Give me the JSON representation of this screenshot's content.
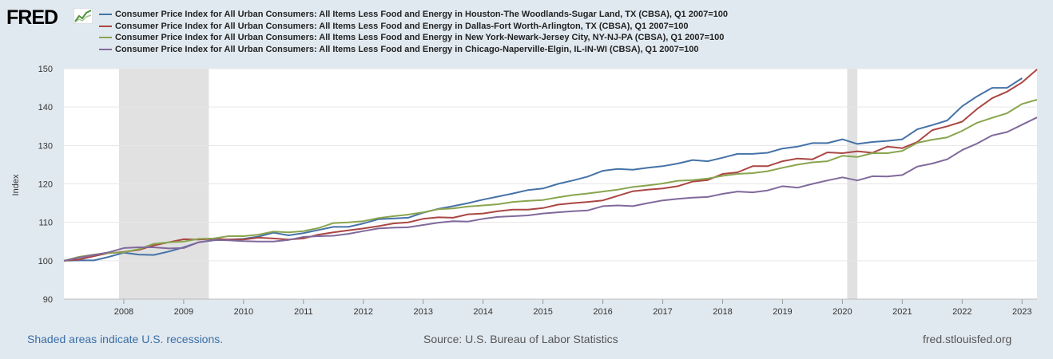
{
  "branding": {
    "logo_text": "FRED",
    "logo_colors": {
      "graph": "#4f8f3c",
      "text": "#000000"
    }
  },
  "footer": {
    "recession_note": "Shaded areas indicate U.S. recessions.",
    "source": "Source: U.S. Bureau of Labor Statistics",
    "site": "fred.stlouisfed.org"
  },
  "colors": {
    "background": "#e1e9f0",
    "plot_background": "#ffffff",
    "grid": "#e6e6e6",
    "recession": "#e1e1e1"
  },
  "chart_data": {
    "type": "line",
    "title": "",
    "xlabel": "",
    "ylabel": "Index",
    "ylim": [
      90,
      150
    ],
    "yticks": [
      90,
      100,
      110,
      120,
      130,
      140,
      150
    ],
    "xlim": [
      2007.0,
      2023.25
    ],
    "xticks": [
      "2008",
      "2009",
      "2010",
      "2011",
      "2012",
      "2013",
      "2014",
      "2015",
      "2016",
      "2017",
      "2018",
      "2019",
      "2020",
      "2021",
      "2022",
      "2023"
    ],
    "grid": true,
    "legend_position": "top",
    "recessions": [
      [
        2007.92,
        2009.42
      ],
      [
        2020.08,
        2020.25
      ]
    ],
    "x": [
      2007.0,
      2007.25,
      2007.5,
      2007.75,
      2008.0,
      2008.25,
      2008.5,
      2008.75,
      2009.0,
      2009.25,
      2009.5,
      2009.75,
      2010.0,
      2010.25,
      2010.5,
      2010.75,
      2011.0,
      2011.25,
      2011.5,
      2011.75,
      2012.0,
      2012.25,
      2012.5,
      2012.75,
      2013.0,
      2013.25,
      2013.5,
      2013.75,
      2014.0,
      2014.25,
      2014.5,
      2014.75,
      2015.0,
      2015.25,
      2015.5,
      2015.75,
      2016.0,
      2016.25,
      2016.5,
      2016.75,
      2017.0,
      2017.25,
      2017.5,
      2017.75,
      2018.0,
      2018.25,
      2018.5,
      2018.75,
      2019.0,
      2019.25,
      2019.5,
      2019.75,
      2020.0,
      2020.25,
      2020.5,
      2020.75,
      2021.0,
      2021.25,
      2021.5,
      2021.75,
      2022.0,
      2022.25,
      2022.5,
      2022.75,
      2023.0,
      2023.25
    ],
    "series": [
      {
        "name": "Consumer Price Index for All Urban Consumers: All Items Less Food and Energy in Houston-The Woodlands-Sugar Land, TX (CBSA), Q1 2007=100",
        "color": "#4572a7",
        "values": [
          100,
          100.1,
          100.1,
          101.0,
          102.1,
          101.6,
          101.5,
          102.4,
          103.5,
          104.8,
          105.3,
          105.5,
          105.7,
          106.3,
          107.3,
          106.6,
          107.2,
          108.0,
          108.8,
          108.8,
          109.7,
          110.8,
          111.0,
          111.2,
          112.5,
          113.5,
          114.2,
          115.0,
          115.9,
          116.7,
          117.5,
          118.4,
          118.8,
          120.0,
          120.9,
          121.9,
          123.4,
          123.9,
          123.7,
          124.2,
          124.6,
          125.3,
          126.2,
          125.9,
          126.8,
          127.8,
          127.8,
          128.1,
          129.2,
          129.7,
          130.6,
          130.6,
          131.6,
          130.4,
          130.9,
          131.2,
          131.6,
          134.2,
          135.3,
          136.5,
          140.2,
          142.8,
          145.0,
          145.0,
          147.5,
          null
        ]
      },
      {
        "name": "Consumer Price Index for All Urban Consumers: All Items Less Food and Energy in Dallas-Fort Worth-Arlington, TX (CBSA), Q1 2007=100",
        "color": "#aa4643",
        "values": [
          100,
          100.3,
          101.2,
          102.0,
          102.3,
          102.8,
          104.0,
          104.8,
          105.6,
          105.5,
          105.7,
          105.5,
          105.5,
          106.0,
          105.8,
          105.5,
          105.8,
          106.8,
          107.4,
          107.9,
          108.4,
          109.0,
          109.7,
          110.0,
          110.9,
          111.3,
          111.2,
          112.1,
          112.3,
          112.9,
          113.3,
          113.3,
          113.7,
          114.6,
          115.0,
          115.3,
          115.7,
          116.9,
          118.1,
          118.5,
          118.8,
          119.4,
          120.6,
          121.0,
          122.6,
          123.0,
          124.6,
          124.6,
          125.9,
          126.6,
          126.4,
          128.2,
          128.0,
          128.5,
          128.1,
          129.7,
          129.3,
          130.9,
          134.0,
          135.0,
          136.2,
          139.5,
          142.3,
          144.0,
          146.4,
          149.8
        ]
      },
      {
        "name": "Consumer Price Index for All Urban Consumers: All Items Less Food and Energy in New York-Newark-Jersey City, NY-NJ-PA (CBSA), Q1 2007=100",
        "color": "#89a54e",
        "values": [
          100,
          101.0,
          101.6,
          102.0,
          102.2,
          103.0,
          104.4,
          104.8,
          105.0,
          105.7,
          105.8,
          106.4,
          106.4,
          106.8,
          107.6,
          107.4,
          107.7,
          108.5,
          109.8,
          110.0,
          110.3,
          111.1,
          111.6,
          112.0,
          112.6,
          113.4,
          113.6,
          114.1,
          114.4,
          114.7,
          115.3,
          115.6,
          115.8,
          116.5,
          117.1,
          117.5,
          118.0,
          118.5,
          119.2,
          119.6,
          120.1,
          120.8,
          121.0,
          121.4,
          122.1,
          122.6,
          122.8,
          123.3,
          124.2,
          125.0,
          125.6,
          125.9,
          127.3,
          127.0,
          128.0,
          128.0,
          128.6,
          130.7,
          131.5,
          132.1,
          133.8,
          135.9,
          137.2,
          138.4,
          140.8,
          141.9
        ]
      },
      {
        "name": "Consumer Price Index for All Urban Consumers: All Items Less Food and Energy in Chicago-Naperville-Elgin, IL-IN-WI (CBSA), Q1 2007=100",
        "color": "#80699b",
        "values": [
          100,
          100.8,
          101.5,
          102.2,
          103.3,
          103.5,
          103.5,
          103.2,
          103.3,
          104.8,
          105.4,
          105.3,
          105.1,
          105.0,
          105.0,
          105.4,
          106.2,
          106.4,
          106.5,
          107.0,
          107.7,
          108.4,
          108.6,
          108.7,
          109.3,
          109.9,
          110.3,
          110.2,
          110.9,
          111.4,
          111.6,
          111.8,
          112.3,
          112.6,
          112.9,
          113.1,
          114.2,
          114.4,
          114.2,
          115.0,
          115.7,
          116.1,
          116.4,
          116.6,
          117.4,
          118.0,
          117.8,
          118.3,
          119.4,
          119.0,
          120.0,
          120.9,
          121.7,
          120.9,
          122.0,
          121.9,
          122.3,
          124.5,
          125.3,
          126.4,
          128.8,
          130.5,
          132.6,
          133.5,
          135.4,
          137.3
        ]
      }
    ]
  }
}
